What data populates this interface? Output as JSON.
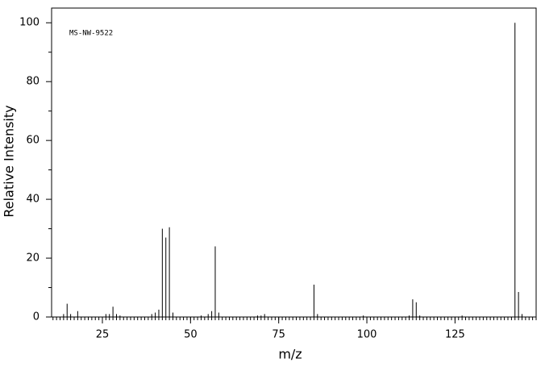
{
  "chart_data": {
    "type": "stem",
    "annotation": "MS-NW-9522",
    "x_label": "m/z",
    "y_label": "Relative Intensity",
    "x": [
      14,
      15,
      16,
      18,
      26,
      27,
      28,
      29,
      30,
      39,
      40,
      41,
      42,
      43,
      44,
      45,
      53,
      55,
      56,
      57,
      58,
      69,
      70,
      71,
      85,
      86,
      99,
      112,
      113,
      114,
      115,
      127,
      142,
      143,
      144
    ],
    "values": [
      1,
      4.5,
      1,
      2,
      1,
      1,
      3.5,
      1,
      0.5,
      1,
      1.5,
      2.5,
      30,
      27,
      30.5,
      1.5,
      0.5,
      1,
      2,
      24,
      1.5,
      0.5,
      0.5,
      1,
      11,
      1,
      0.5,
      0.5,
      6,
      5,
      0.5,
      0.5,
      100,
      8.5,
      1
    ],
    "color": "#000000",
    "xlim": [
      10.6,
      148
    ],
    "ylim": [
      0,
      105
    ],
    "xticks": [
      25,
      50,
      75,
      100,
      125
    ],
    "yticks": [
      0,
      20,
      40,
      60,
      80,
      100
    ]
  }
}
